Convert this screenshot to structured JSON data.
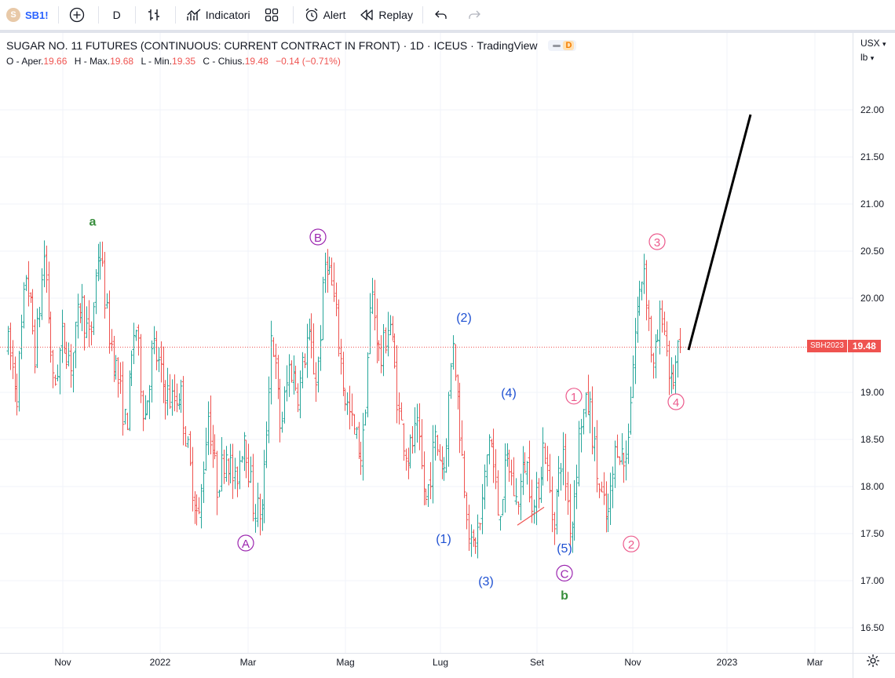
{
  "toolbar": {
    "symbol_avatar": "S",
    "symbol": "SB1!",
    "interval": "D",
    "indicators_label": "Indicatori",
    "alert_label": "Alert",
    "replay_label": "Replay"
  },
  "legend": {
    "title": "SUGAR NO. 11 FUTURES (CONTINUOUS: CURRENT CONTRACT IN FRONT) · 1D · ICEUS · TradingView",
    "badge": "D"
  },
  "ohlc": {
    "o_label": "O - Aper.",
    "o": "19.66",
    "h_label": "H - Max.",
    "h": "19.68",
    "l_label": "L - Min.",
    "l": "19.35",
    "c_label": "C - Chius.",
    "c": "19.48",
    "change": "−0.14 (−0.71%)"
  },
  "scale": {
    "currency": "USX",
    "unit": "lb"
  },
  "price_tag": {
    "symbol": "SBH2023",
    "value": "19.48"
  },
  "colors": {
    "up": "#26a69a",
    "down": "#ef5350",
    "wave_green": "#388e3c",
    "wave_purple": "#9c27b0",
    "wave_blue": "#1e50d2",
    "wave_pink": "#ec5a8c"
  },
  "chart_data": {
    "type": "ohlc-bar",
    "ylim": [
      16.3,
      22.6
    ],
    "y_ticks": [
      "22.00",
      "21.50",
      "21.00",
      "20.50",
      "20.00",
      "19.00",
      "18.50",
      "18.00",
      "17.50",
      "17.00",
      "16.50"
    ],
    "x_ticks": [
      "Nov",
      "2022",
      "Mar",
      "Mag",
      "Lug",
      "Set",
      "Nov",
      "2023",
      "Mar"
    ],
    "last_price": 19.48,
    "path": [
      [
        "Set 2021",
        19.5
      ],
      [
        "",
        19.0
      ],
      [
        "",
        20.3
      ],
      [
        "",
        19.4
      ],
      [
        "",
        20.5
      ],
      [
        "",
        19.0
      ],
      [
        "",
        19.6
      ],
      [
        "",
        19.3
      ],
      [
        "",
        20.0
      ],
      [
        "Nov",
        19.5
      ],
      [
        "",
        20.6
      ],
      [
        "",
        19.7
      ],
      [
        "",
        19.2
      ],
      [
        "",
        18.6
      ],
      [
        "",
        19.8
      ],
      [
        "",
        18.7
      ],
      [
        "",
        19.5
      ],
      [
        "",
        19.1
      ],
      [
        "",
        18.9
      ],
      [
        "2022",
        19.0
      ],
      [
        "",
        18.2
      ],
      [
        "",
        17.6
      ],
      [
        "",
        18.8
      ],
      [
        "",
        18.0
      ],
      [
        "",
        18.4
      ],
      [
        "",
        18.0
      ],
      [
        "",
        18.6
      ],
      [
        "",
        17.8
      ],
      [
        "Mar",
        17.7
      ],
      [
        "",
        19.7
      ],
      [
        "",
        18.6
      ],
      [
        "",
        19.3
      ],
      [
        "",
        19.0
      ],
      [
        "",
        19.6
      ],
      [
        "",
        19.1
      ],
      [
        "",
        20.5
      ],
      [
        "",
        19.9
      ],
      [
        "",
        19.0
      ],
      [
        "Mag",
        18.6
      ],
      [
        "",
        18.3
      ],
      [
        "",
        20.1
      ],
      [
        "",
        19.3
      ],
      [
        "",
        19.8
      ],
      [
        "",
        18.8
      ],
      [
        "",
        18.3
      ],
      [
        "",
        18.6
      ],
      [
        "",
        17.8
      ],
      [
        "",
        18.5
      ],
      [
        "Lug",
        18.2
      ],
      [
        "",
        19.6
      ],
      [
        "",
        18.3
      ],
      [
        "",
        17.3
      ],
      [
        "",
        17.6
      ],
      [
        "",
        18.6
      ],
      [
        "",
        17.7
      ],
      [
        "",
        18.3
      ],
      [
        "",
        17.8
      ],
      [
        "",
        18.3
      ],
      [
        "Set",
        17.7
      ],
      [
        "",
        18.5
      ],
      [
        "",
        17.6
      ],
      [
        "",
        18.4
      ],
      [
        "",
        17.5
      ],
      [
        "",
        18.7
      ],
      [
        "",
        18.9
      ],
      [
        "",
        18.0
      ],
      [
        "",
        17.6
      ],
      [
        "",
        18.5
      ],
      [
        "Nov",
        18.2
      ],
      [
        "",
        19.6
      ],
      [
        "",
        20.4
      ],
      [
        "",
        19.2
      ],
      [
        "",
        19.9
      ],
      [
        "",
        19.05
      ],
      [
        "",
        19.48
      ]
    ],
    "projection": {
      "from": 19.45,
      "to": 21.95
    },
    "wave_labels": [
      {
        "text": "a",
        "style": "green",
        "price": 20.82
      },
      {
        "text": "A",
        "style": "purple-circle",
        "price": 17.4
      },
      {
        "text": "B",
        "style": "purple-circle",
        "price": 20.65
      },
      {
        "text": "(2)",
        "style": "blue",
        "price": 19.8
      },
      {
        "text": "(1)",
        "style": "blue",
        "price": 17.45
      },
      {
        "text": "(3)",
        "style": "blue",
        "price": 17.0
      },
      {
        "text": "(4)",
        "style": "blue",
        "price": 19.0
      },
      {
        "text": "(5)",
        "style": "blue",
        "price": 17.35
      },
      {
        "text": "C",
        "style": "purple-circle",
        "price": 17.08
      },
      {
        "text": "b",
        "style": "green",
        "price": 16.85
      },
      {
        "text": "1",
        "style": "pink-circle",
        "price": 18.96
      },
      {
        "text": "2",
        "style": "pink-circle",
        "price": 17.39
      },
      {
        "text": "3",
        "style": "pink-circle",
        "price": 20.6
      },
      {
        "text": "4",
        "style": "pink-circle",
        "price": 18.9
      }
    ]
  }
}
